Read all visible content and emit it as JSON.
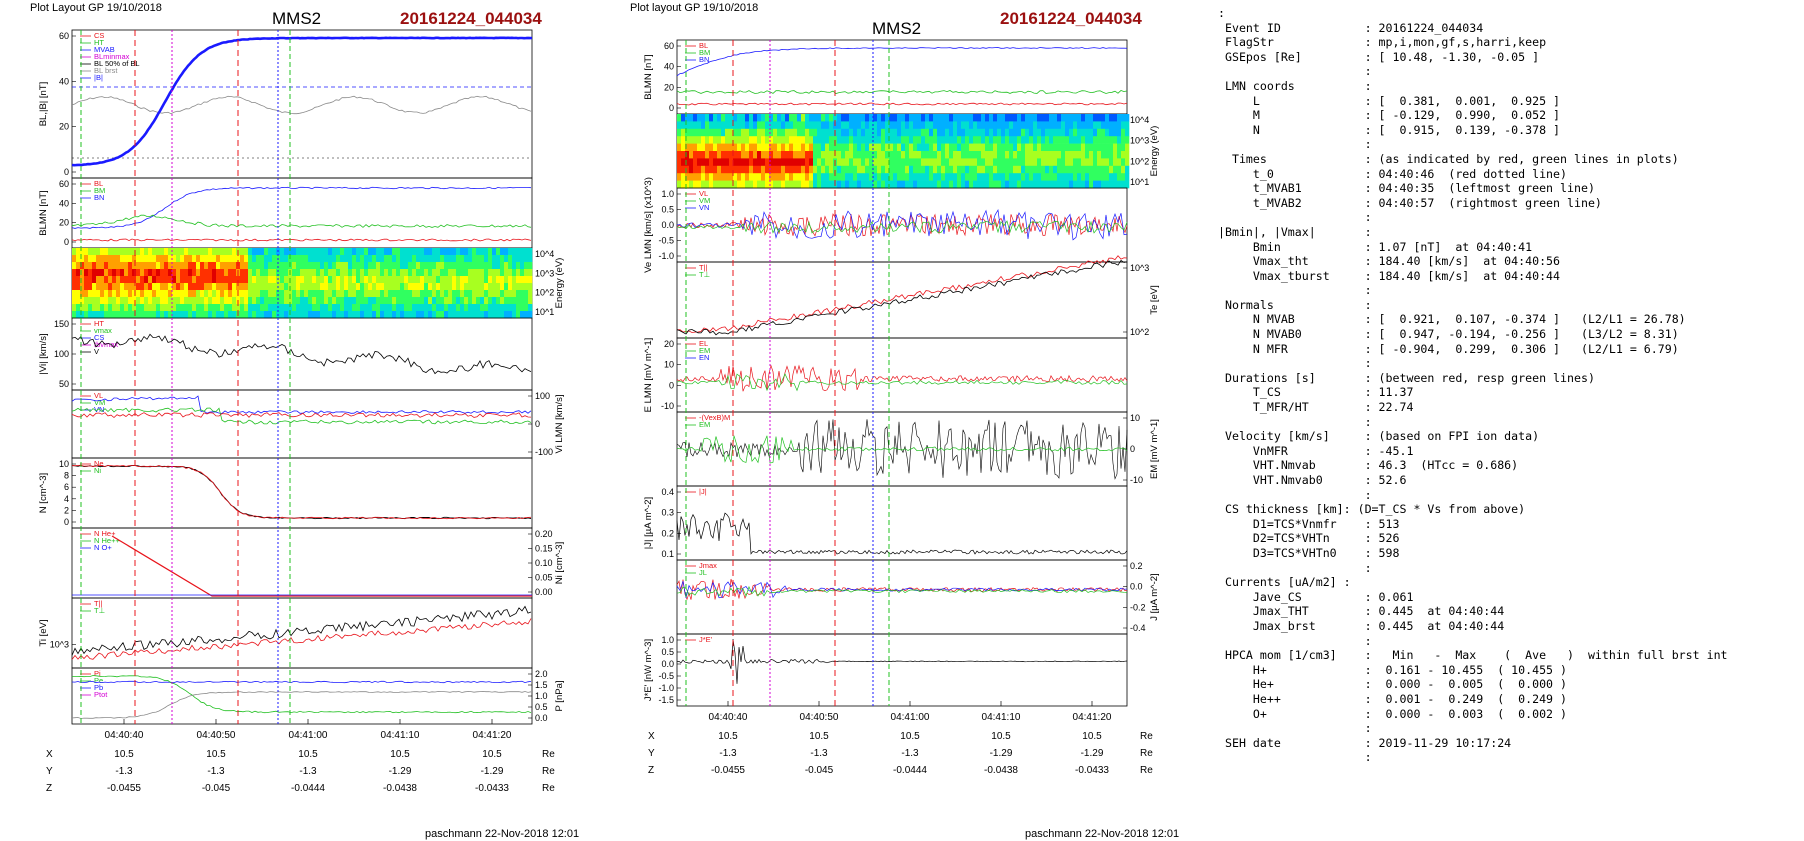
{
  "left": {
    "header_left": "Plot Layout GP 19/10/2018",
    "header_mid": "MMS2",
    "header_event": "20161224_044034",
    "footer": "paschmann 22-Nov-2018 12:01",
    "time_ticks": [
      "04:40:40",
      "04:40:50",
      "04:41:00",
      "04:41:10",
      "04:41:20"
    ],
    "coord_rows": [
      {
        "label": "X",
        "values": [
          "10.5",
          "10.5",
          "10.5",
          "10.5",
          "10.5"
        ],
        "unit": "Re"
      },
      {
        "label": "Y",
        "values": [
          "-1.3",
          "-1.3",
          "-1.3",
          "-1.29",
          "-1.29"
        ],
        "unit": "Re"
      },
      {
        "label": "Z",
        "values": [
          "-0.0455",
          "-0.045",
          "-0.0444",
          "-0.0438",
          "-0.0433"
        ],
        "unit": "Re"
      }
    ],
    "panels": [
      {
        "ylabel": "BL,|B| [nT]",
        "side": "left",
        "ticks": [
          "60",
          "40",
          "20",
          "0"
        ],
        "legend": [
          "CS",
          "HT",
          "MVAB",
          "BLminmax",
          "BL 50% of BL",
          "BL brst",
          "|B|"
        ]
      },
      {
        "ylabel": "BLMN [nT]",
        "side": "left",
        "ticks": [
          "60",
          "40",
          "20",
          "0"
        ],
        "legend": [
          "BL",
          "BM",
          "BN"
        ]
      },
      {
        "ylabel": "Energy (eV)",
        "side": "right",
        "ticks": [
          "10^4",
          "10^3",
          "10^2",
          "10^1"
        ],
        "legend": []
      },
      {
        "ylabel": "|Vi| [km/s]",
        "side": "left",
        "ticks": [
          "150",
          "100",
          "50"
        ],
        "legend": [
          "HT",
          "vmax",
          "CS",
          "tbvmax",
          "V"
        ]
      },
      {
        "ylabel": "Vi LMN [km/s]",
        "side": "right",
        "ticks": [
          "100",
          "0",
          "-100"
        ],
        "legend": [
          "VL",
          "VM",
          "VN"
        ]
      },
      {
        "ylabel": "N [cm^-3]",
        "side": "left",
        "ticks": [
          "10",
          "8",
          "6",
          "4",
          "2",
          "0"
        ],
        "legend": [
          "Ne",
          "Ni"
        ]
      },
      {
        "ylabel": "Ni [cm^-3]",
        "side": "right",
        "ticks": [
          "0.20",
          "0.15",
          "0.10",
          "0.05",
          "0.00"
        ],
        "legend": [
          "N He+",
          "N He++",
          "N O+"
        ]
      },
      {
        "ylabel": "Ti [eV]",
        "side": "left",
        "ticks": [
          "10^3"
        ],
        "legend": [
          "T||",
          "T⊥"
        ]
      },
      {
        "ylabel": "P [nPa]",
        "side": "right",
        "ticks": [
          "2.0",
          "1.5",
          "1.0",
          "0.5",
          "0.0"
        ],
        "legend": [
          "Pi",
          "Pe",
          "Pb",
          "Ptot"
        ]
      }
    ]
  },
  "middle": {
    "header_left": "Plot layout GP 19/10/2018",
    "header_mid": "MMS2",
    "header_event": "20161224_044034",
    "footer": "paschmann 22-Nov-2018 12:01",
    "time_ticks": [
      "04:40:40",
      "04:40:50",
      "04:41:00",
      "04:41:10",
      "04:41:20"
    ],
    "coord_rows": [
      {
        "label": "X",
        "values": [
          "10.5",
          "10.5",
          "10.5",
          "10.5",
          "10.5"
        ],
        "unit": "Re"
      },
      {
        "label": "Y",
        "values": [
          "-1.3",
          "-1.3",
          "-1.3",
          "-1.29",
          "-1.29"
        ],
        "unit": "Re"
      },
      {
        "label": "Z",
        "values": [
          "-0.0455",
          "-0.045",
          "-0.0444",
          "-0.0438",
          "-0.0433"
        ],
        "unit": "Re"
      }
    ],
    "panels": [
      {
        "ylabel": "BLMN [nT]",
        "side": "left",
        "ticks": [
          "60",
          "40",
          "20",
          "0"
        ],
        "legend": [
          "BL",
          "BM",
          "BN"
        ]
      },
      {
        "ylabel": "Energy (eV)",
        "side": "right",
        "ticks": [
          "10^4",
          "10^3",
          "10^2",
          "10^1"
        ],
        "legend": []
      },
      {
        "ylabel": "Ve LMN [km/s] (x10^3)",
        "side": "left",
        "ticks": [
          "1.0",
          "0.5",
          "0.0",
          "-0.5",
          "-1.0"
        ],
        "legend": [
          "VL",
          "VM",
          "VN"
        ]
      },
      {
        "ylabel": "Te [eV]",
        "side": "right",
        "ticks": [
          "10^3",
          "10^2"
        ],
        "legend": [
          "T||",
          "T⊥"
        ]
      },
      {
        "ylabel": "E LMN [mV m^-1]",
        "side": "left",
        "ticks": [
          "20",
          "10",
          "0",
          "-10"
        ],
        "legend": [
          "EL",
          "EM",
          "EN"
        ]
      },
      {
        "ylabel": "EM [mV m^-1]",
        "side": "right",
        "ticks": [
          "10",
          "0",
          "-10"
        ],
        "legend": [
          "-(VexB)M",
          "EM"
        ]
      },
      {
        "ylabel": "|J| [µA m^-2]",
        "side": "left",
        "ticks": [
          "0.4",
          "0.3",
          "0.2",
          "0.1"
        ],
        "legend": [
          "|J|"
        ]
      },
      {
        "ylabel": "J [µA m^-2]",
        "side": "right",
        "ticks": [
          "0.2",
          "0.0",
          "-0.2",
          "-0.4"
        ],
        "legend": [
          "Jmax",
          "JL"
        ]
      },
      {
        "ylabel": "J*E' [nW m^-3]",
        "side": "left",
        "ticks": [
          "1.0",
          "0.5",
          "0.0",
          "-0.5",
          "-1.0",
          "-1.5"
        ],
        "legend": [
          "J*E'"
        ]
      }
    ]
  },
  "info_lines": [
    ":",
    " Event ID            : 20161224_044034",
    " FlagStr             : mp,i,mon,gf,s,harri,keep",
    " GSEpos [Re]         : [ 10.48, -1.30, -0.05 ]",
    "                     :",
    " LMN coords          :",
    "     L               : [  0.381,  0.001,  0.925 ]",
    "     M               : [ -0.129,  0.990,  0.052 ]",
    "     N               : [  0.915,  0.139, -0.378 ]",
    "                     :",
    "  Times              : (as indicated by red, green lines in plots)",
    "     t_0             : 04:40:46  (red dotted line)",
    "     t_MVAB1         : 04:40:35  (leftmost green line)",
    "     t_MVAB2         : 04:40:57  (rightmost green line)",
    "                     :",
    "|Bmin|, |Vmax|       :",
    "     Bmin            : 1.07 [nT]  at 04:40:41",
    "     Vmax_tht        : 184.40 [km/s]  at 04:40:56",
    "     Vmax_tburst     : 184.40 [km/s]  at 04:40:44",
    "                     :",
    " Normals             :",
    "     N MVAB          : [  0.921,  0.107, -0.374 ]   (L2/L1 = 26.78)",
    "     N MVAB0         : [  0.947, -0.194, -0.256 ]   (L3/L2 = 8.31)",
    "     N MFR           : [ -0.904,  0.299,  0.306 ]   (L2/L1 = 6.79)",
    "                     :",
    " Durations [s]       : (between red, resp green lines)",
    "     T_CS            : 11.37",
    "     T_MFR/HT        : 22.74",
    "                     :",
    " Velocity [km/s]     : (based on FPI ion data)",
    "     VnMFR           : -45.1",
    "     VHT.Nmvab       : 46.3  (HTcc = 0.686)",
    "     VHT.Nmvab0      : 52.6",
    "                     :",
    " CS thickness [km]: (D=T_CS * Vs from above)",
    "     D1=TCS*Vnmfr    : 513",
    "     D2=TCS*VHTn     : 526",
    "     D3=TCS*VHTn0    : 598",
    "                     :",
    " Currents [uA/m2] :",
    "     Jave_CS         : 0.061",
    "     Jmax_THT        : 0.445  at 04:40:44",
    "     Jmax_brst       : 0.445  at 04:40:44",
    "                     :",
    " HPCA mom [1/cm3]    :   Min   -  Max    (  Ave   )  within full brst int",
    "     H+              :  0.161 - 10.455  ( 10.455 )",
    "     He+             :  0.000 -  0.005  (  0.000 )",
    "     He++            :  0.001 -  0.249  (  0.249 )",
    "     O+              :  0.000 -  0.003  (  0.002 )",
    "                     :",
    " SEH date            : 2019-11-29 10:17:24",
    "                     :"
  ],
  "colors": {
    "event": "#9b1010",
    "red": "#e8141b",
    "green": "#22c022",
    "blue": "#1a1aff",
    "magenta": "#d400d4",
    "black": "#000000",
    "grey": "#8a8a8a"
  }
}
